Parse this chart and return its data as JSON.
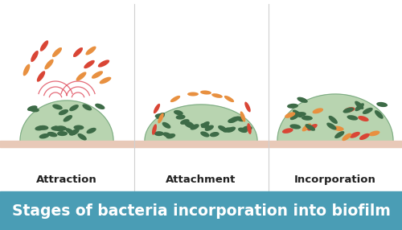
{
  "title": "Stages of bacteria incorporation into biofilm",
  "title_bg": "#4a9db5",
  "title_color": "#ffffff",
  "title_fontsize": 13.5,
  "background_color": "#ffffff",
  "surface_color": "#e8c9b8",
  "stages": [
    "Attraction",
    "Attachment",
    "Incorporation"
  ],
  "stage_label_fontsize": 9.5,
  "bacteria_green_dark": "#3d6b47",
  "bacteria_orange": "#e89040",
  "bacteria_red": "#d94535",
  "panel_divider_color": "#d0d0d0",
  "biofilm_fill": "#b8d4b0",
  "biofilm_edge": "#7aaa82"
}
